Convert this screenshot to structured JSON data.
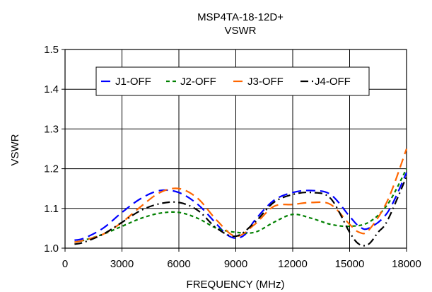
{
  "chart_data": {
    "type": "line",
    "title": "MSP4TA-18-12D+",
    "subtitle": "VSWR",
    "xlabel": "FREQUENCY (MHz)",
    "ylabel": "VSWR",
    "xlim": [
      0,
      18000
    ],
    "ylim": [
      1.0,
      1.5
    ],
    "x_ticks": [
      0,
      3000,
      6000,
      9000,
      12000,
      15000,
      18000
    ],
    "x_tick_labels": [
      "0",
      "3000",
      "6000",
      "9000",
      "12000",
      "15000",
      "18000"
    ],
    "y_ticks": [
      1.0,
      1.1,
      1.2,
      1.3,
      1.4,
      1.5
    ],
    "y_tick_labels": [
      "1.0",
      "1.1",
      "1.2",
      "1.3",
      "1.4",
      "1.5"
    ],
    "grid": true,
    "legend_position": "top-center",
    "series": [
      {
        "name": "J1-OFF",
        "color": "#0000ff",
        "dash": "long-dash",
        "x": [
          500,
          1000,
          2000,
          3000,
          4000,
          5000,
          6000,
          7000,
          8000,
          8500,
          9000,
          9500,
          10000,
          11000,
          12000,
          13000,
          14000,
          15000,
          15500,
          16000,
          17000,
          18000
        ],
        "y": [
          1.02,
          1.025,
          1.05,
          1.09,
          1.125,
          1.145,
          1.14,
          1.11,
          1.06,
          1.035,
          1.025,
          1.035,
          1.07,
          1.12,
          1.14,
          1.145,
          1.135,
          1.08,
          1.055,
          1.05,
          1.09,
          1.19
        ]
      },
      {
        "name": "J2-OFF",
        "color": "#008000",
        "dash": "short-dash",
        "x": [
          500,
          1000,
          2000,
          3000,
          4000,
          5000,
          6000,
          7000,
          8000,
          9000,
          10000,
          11000,
          12000,
          13000,
          14000,
          15000,
          16000,
          17000,
          18000
        ],
        "y": [
          1.015,
          1.02,
          1.035,
          1.055,
          1.075,
          1.088,
          1.09,
          1.075,
          1.05,
          1.04,
          1.04,
          1.065,
          1.085,
          1.075,
          1.06,
          1.055,
          1.065,
          1.11,
          1.2
        ]
      },
      {
        "name": "J3-OFF",
        "color": "#ff6600",
        "dash": "long-dash",
        "x": [
          500,
          1000,
          2000,
          3000,
          4000,
          5000,
          6000,
          7000,
          8000,
          9000,
          10000,
          11000,
          12000,
          13000,
          14000,
          15000,
          15500,
          16000,
          17000,
          18000
        ],
        "y": [
          1.015,
          1.02,
          1.035,
          1.065,
          1.105,
          1.14,
          1.15,
          1.125,
          1.07,
          1.03,
          1.06,
          1.105,
          1.11,
          1.115,
          1.11,
          1.06,
          1.04,
          1.045,
          1.12,
          1.25
        ]
      },
      {
        "name": "J4-OFF",
        "color": "#000000",
        "dash": "dash-dot",
        "x": [
          500,
          1000,
          2000,
          3000,
          4000,
          5000,
          6000,
          7000,
          8000,
          9000,
          10000,
          11000,
          12000,
          13000,
          14000,
          15000,
          15500,
          16000,
          16500,
          17000,
          18000
        ],
        "y": [
          1.01,
          1.015,
          1.035,
          1.065,
          1.095,
          1.112,
          1.115,
          1.095,
          1.05,
          1.03,
          1.065,
          1.115,
          1.135,
          1.14,
          1.125,
          1.04,
          1.01,
          1.01,
          1.04,
          1.07,
          1.18
        ]
      }
    ]
  }
}
